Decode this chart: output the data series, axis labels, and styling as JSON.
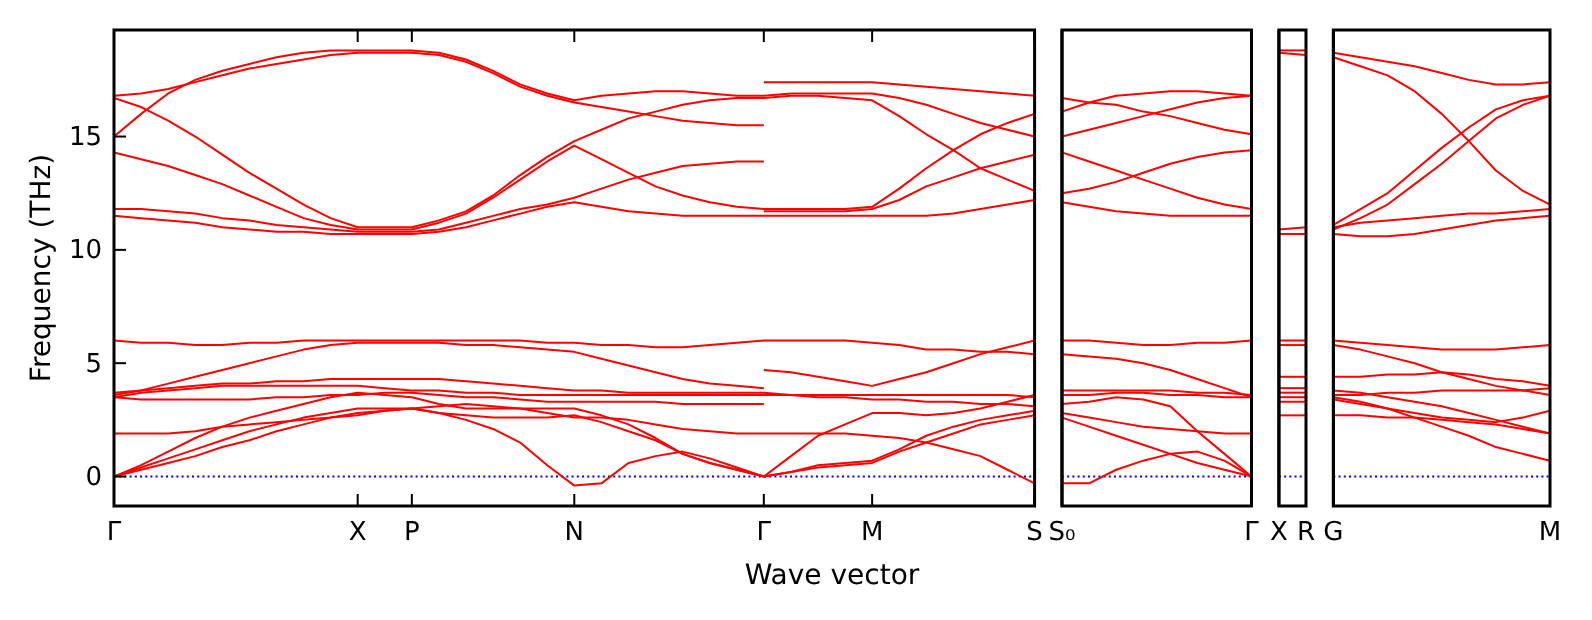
{
  "chart_data": [
    {
      "type": "line",
      "ylabel": "Frequency (THz)",
      "xlabel": "Wave vector",
      "ylim": [
        -1.3,
        19.7
      ],
      "yticks": [
        0,
        5,
        10,
        15
      ],
      "categories": [
        "Γ",
        null,
        null,
        null,
        null,
        null,
        null,
        null,
        null,
        "X",
        null,
        "P",
        null,
        null,
        null,
        null,
        null,
        "N",
        null,
        null,
        null,
        null,
        null,
        null,
        "Γ",
        null,
        null,
        null,
        "M",
        null,
        null,
        null,
        null,
        null,
        "S"
      ],
      "line_style": "solid",
      "ref_lines": [
        {
          "axis": "y",
          "value": 0,
          "color": "#0000ff",
          "line_style": "dotted"
        }
      ],
      "series": [
        {
          "color": "#ff0000",
          "values": [
            15.0,
            16.0,
            16.9,
            17.5,
            17.9,
            18.2,
            18.5,
            18.7,
            18.8,
            18.8,
            18.8,
            18.8,
            18.7,
            18.4,
            17.9,
            17.3,
            16.9,
            16.6,
            16.8,
            16.9,
            17.0,
            17.0,
            16.9,
            16.8,
            16.8,
            16.9,
            16.9,
            16.9,
            16.9,
            16.7,
            16.4,
            16.0,
            15.6,
            15.3,
            15.0
          ]
        },
        {
          "color": "#ff0000",
          "values": [
            16.8,
            16.9,
            17.1,
            17.4,
            17.7,
            18.0,
            18.2,
            18.4,
            18.6,
            18.7,
            18.7,
            18.7,
            18.6,
            18.3,
            17.8,
            17.2,
            16.8,
            16.5,
            16.3,
            16.1,
            15.9,
            15.7,
            15.6,
            15.5,
            15.5,
            null,
            null,
            null,
            null,
            null,
            null,
            null,
            null,
            null,
            null
          ]
        },
        {
          "color": "#ff0000",
          "values": [
            null,
            null,
            null,
            null,
            null,
            null,
            null,
            null,
            null,
            null,
            null,
            null,
            null,
            null,
            null,
            null,
            null,
            null,
            null,
            null,
            null,
            null,
            null,
            null,
            17.4,
            17.4,
            17.4,
            17.4,
            17.4,
            17.3,
            17.2,
            17.1,
            17.0,
            16.9,
            16.8
          ]
        },
        {
          "color": "#ff0000",
          "values": [
            16.7,
            16.3,
            15.7,
            15.0,
            14.2,
            13.4,
            12.7,
            12.0,
            11.4,
            11.0,
            11.0,
            11.0,
            11.3,
            11.7,
            12.4,
            13.3,
            14.1,
            14.8,
            15.3,
            15.8,
            16.1,
            16.4,
            16.6,
            16.7,
            16.7,
            16.8,
            16.8,
            16.7,
            16.6,
            15.9,
            15.1,
            14.4,
            13.6,
            13.1,
            12.6
          ]
        },
        {
          "color": "#ff0000",
          "values": [
            14.3,
            14.0,
            13.7,
            13.3,
            12.9,
            12.4,
            11.9,
            11.4,
            11.1,
            10.9,
            10.9,
            10.9,
            11.2,
            11.6,
            12.3,
            13.1,
            13.9,
            14.6,
            14.0,
            13.4,
            12.8,
            12.4,
            12.1,
            11.9,
            11.8,
            11.8,
            11.8,
            11.8,
            11.9,
            12.7,
            13.6,
            14.4,
            15.1,
            15.6,
            16.0
          ]
        },
        {
          "color": "#ff0000",
          "values": [
            11.8,
            11.8,
            11.7,
            11.6,
            11.4,
            11.3,
            11.1,
            11.0,
            10.9,
            10.8,
            10.8,
            10.8,
            10.9,
            11.2,
            11.5,
            11.8,
            12.0,
            12.3,
            12.7,
            13.1,
            13.4,
            13.7,
            13.8,
            13.9,
            13.9,
            null,
            null,
            null,
            null,
            null,
            null,
            null,
            null,
            null,
            null
          ]
        },
        {
          "color": "#ff0000",
          "values": [
            null,
            null,
            null,
            null,
            null,
            null,
            null,
            null,
            null,
            null,
            null,
            null,
            null,
            null,
            null,
            null,
            null,
            null,
            null,
            null,
            null,
            null,
            null,
            null,
            11.7,
            11.7,
            11.7,
            11.7,
            11.8,
            12.2,
            12.8,
            13.2,
            13.6,
            13.9,
            14.2
          ]
        },
        {
          "color": "#ff0000",
          "values": [
            11.5,
            11.4,
            11.3,
            11.2,
            11.0,
            10.9,
            10.8,
            10.8,
            10.7,
            10.7,
            10.7,
            10.7,
            10.8,
            11.0,
            11.3,
            11.6,
            11.9,
            12.1,
            11.9,
            11.7,
            11.6,
            11.5,
            11.5,
            11.5,
            11.5,
            11.5,
            11.5,
            11.5,
            11.5,
            11.5,
            11.5,
            11.6,
            11.8,
            12.0,
            12.2
          ]
        },
        {
          "color": "#ff0000",
          "values": [
            6.0,
            5.9,
            5.9,
            5.8,
            5.8,
            5.9,
            5.9,
            6.0,
            6.0,
            6.0,
            6.0,
            6.0,
            6.0,
            6.0,
            6.0,
            6.0,
            5.9,
            5.9,
            5.8,
            5.8,
            5.7,
            5.7,
            5.8,
            5.9,
            6.0,
            6.0,
            6.0,
            6.0,
            5.9,
            5.8,
            5.6,
            5.6,
            5.5,
            5.5,
            5.4
          ]
        },
        {
          "color": "#ff0000",
          "values": [
            3.6,
            3.8,
            4.1,
            4.4,
            4.7,
            5.0,
            5.3,
            5.6,
            5.8,
            5.9,
            5.9,
            5.9,
            5.9,
            5.8,
            5.8,
            5.7,
            5.6,
            5.5,
            5.2,
            4.9,
            4.6,
            4.3,
            4.1,
            4.0,
            3.9,
            null,
            null,
            null,
            null,
            null,
            null,
            null,
            null,
            null,
            null
          ]
        },
        {
          "color": "#ff0000",
          "values": [
            3.7,
            3.8,
            3.9,
            4.0,
            4.1,
            4.1,
            4.2,
            4.2,
            4.3,
            4.3,
            4.3,
            4.3,
            4.3,
            4.2,
            4.1,
            4.0,
            3.9,
            3.8,
            3.8,
            3.7,
            3.7,
            3.7,
            3.7,
            3.7,
            3.7,
            3.6,
            3.5,
            3.5,
            3.4,
            3.4,
            3.3,
            3.3,
            3.2,
            3.2,
            3.1
          ]
        },
        {
          "color": "#ff0000",
          "values": [
            3.5,
            3.7,
            3.8,
            3.9,
            4.0,
            4.0,
            4.0,
            4.0,
            4.0,
            4.0,
            3.9,
            3.8,
            3.8,
            3.7,
            3.7,
            3.6,
            3.6,
            3.6,
            3.6,
            3.6,
            3.6,
            3.6,
            3.6,
            3.6,
            3.6,
            3.6,
            3.6,
            3.6,
            3.6,
            3.6,
            3.6,
            3.6,
            3.6,
            3.6,
            3.5
          ]
        },
        {
          "color": "#ff0000",
          "values": [
            3.5,
            3.4,
            3.4,
            3.4,
            3.4,
            3.4,
            3.5,
            3.5,
            3.6,
            3.6,
            3.7,
            3.7,
            3.6,
            3.5,
            3.5,
            3.4,
            3.3,
            3.3,
            3.3,
            3.3,
            3.3,
            3.2,
            3.2,
            3.2,
            3.2,
            null,
            null,
            null,
            null,
            null,
            null,
            null,
            null,
            null,
            null
          ]
        },
        {
          "color": "#ff0000",
          "values": [
            null,
            null,
            null,
            null,
            null,
            null,
            null,
            null,
            null,
            null,
            null,
            null,
            null,
            null,
            null,
            null,
            null,
            null,
            null,
            null,
            null,
            null,
            null,
            null,
            4.7,
            4.6,
            4.4,
            4.2,
            4.0,
            4.3,
            4.6,
            5.0,
            5.4,
            5.7,
            6.0
          ]
        },
        {
          "color": "#ff0000",
          "values": [
            1.9,
            1.9,
            1.9,
            2.0,
            2.2,
            2.3,
            2.4,
            2.5,
            2.6,
            2.7,
            2.9,
            3.0,
            3.1,
            3.2,
            3.1,
            3.0,
            2.8,
            2.6,
            2.6,
            2.5,
            2.3,
            2.1,
            2.0,
            1.9,
            1.9,
            1.9,
            1.9,
            1.9,
            1.8,
            1.7,
            1.5,
            1.2,
            0.9,
            0.3,
            -0.3
          ]
        },
        {
          "color": "#ff0000",
          "values": [
            0,
            0.5,
            1.1,
            1.7,
            2.2,
            2.6,
            2.9,
            3.2,
            3.5,
            3.7,
            3.6,
            3.5,
            3.2,
            3.0,
            3.0,
            3.0,
            3.0,
            3.0,
            2.7,
            2.3,
            1.7,
            1.0,
            0.6,
            0.3,
            0,
            0.9,
            1.8,
            2.3,
            2.8,
            2.8,
            2.7,
            2.8,
            3.0,
            3.3,
            3.6
          ]
        },
        {
          "color": "#ff0000",
          "values": [
            0,
            0.4,
            0.8,
            1.2,
            1.6,
            2.0,
            2.3,
            2.6,
            2.8,
            3.0,
            3.0,
            3.0,
            2.8,
            2.5,
            2.1,
            1.5,
            0.5,
            -0.4,
            -0.3,
            0.6,
            0.9,
            1.1,
            0.8,
            0.4,
            0,
            0.2,
            0.5,
            0.6,
            0.7,
            1.2,
            1.8,
            2.2,
            2.5,
            2.7,
            2.9
          ]
        },
        {
          "color": "#ff0000",
          "values": [
            0,
            0.3,
            0.6,
            0.9,
            1.3,
            1.6,
            2.0,
            2.3,
            2.6,
            2.8,
            2.9,
            3.0,
            2.8,
            2.7,
            2.6,
            2.6,
            2.6,
            2.7,
            2.4,
            2.0,
            1.6,
            1.0,
            0.6,
            0.3,
            0,
            0.2,
            0.4,
            0.5,
            0.6,
            1.1,
            1.5,
            1.9,
            2.3,
            2.5,
            2.7
          ]
        }
      ]
    },
    {
      "type": "line",
      "ylim": [
        -1.3,
        19.7
      ],
      "tick_labels": "x",
      "categories": [
        "S₀",
        null,
        null,
        null,
        null,
        null,
        null,
        "Γ"
      ],
      "line_style": "solid",
      "ref_lines": [
        {
          "axis": "y",
          "value": 0,
          "color": "#0000ff",
          "line_style": "dotted"
        }
      ],
      "series": [
        {
          "color": "#ff0000",
          "values": [
            16.7,
            16.5,
            16.4,
            16.1,
            15.9,
            15.6,
            15.3,
            15.1
          ]
        },
        {
          "color": "#ff0000",
          "values": [
            16.1,
            16.5,
            16.8,
            16.9,
            17.0,
            17.0,
            16.9,
            16.8
          ]
        },
        {
          "color": "#ff0000",
          "values": [
            15.0,
            15.3,
            15.6,
            15.9,
            16.2,
            16.5,
            16.7,
            16.8
          ]
        },
        {
          "color": "#ff0000",
          "values": [
            14.3,
            13.9,
            13.5,
            13.1,
            12.7,
            12.3,
            12.0,
            11.8
          ]
        },
        {
          "color": "#ff0000",
          "values": [
            12.5,
            12.7,
            13.0,
            13.4,
            13.8,
            14.1,
            14.3,
            14.4
          ]
        },
        {
          "color": "#ff0000",
          "values": [
            12.1,
            11.9,
            11.7,
            11.6,
            11.5,
            11.5,
            11.5,
            11.5
          ]
        },
        {
          "color": "#ff0000",
          "values": [
            6.0,
            6.0,
            5.9,
            5.8,
            5.8,
            5.9,
            5.9,
            6.0
          ]
        },
        {
          "color": "#ff0000",
          "values": [
            5.4,
            5.3,
            5.2,
            5.0,
            4.7,
            4.3,
            3.9,
            3.5
          ]
        },
        {
          "color": "#ff0000",
          "values": [
            3.8,
            3.8,
            3.8,
            3.8,
            3.8,
            3.7,
            3.7,
            3.6
          ]
        },
        {
          "color": "#ff0000",
          "values": [
            3.6,
            3.6,
            3.7,
            3.7,
            3.6,
            3.6,
            3.5,
            3.5
          ]
        },
        {
          "color": "#ff0000",
          "values": [
            3.2,
            3.3,
            3.5,
            3.4,
            3.1,
            2.0,
            1.0,
            0
          ]
        },
        {
          "color": "#ff0000",
          "values": [
            2.8,
            2.6,
            2.4,
            2.2,
            2.1,
            2.0,
            1.9,
            1.9
          ]
        },
        {
          "color": "#ff0000",
          "values": [
            2.6,
            2.2,
            1.8,
            1.4,
            1.0,
            0.6,
            0.3,
            0
          ]
        },
        {
          "color": "#ff0000",
          "values": [
            -0.3,
            -0.3,
            0.3,
            0.7,
            1.0,
            1.1,
            0.7,
            0
          ]
        }
      ]
    },
    {
      "type": "line",
      "ylim": [
        -1.3,
        19.7
      ],
      "tick_labels": "x",
      "categories": [
        "X",
        "R"
      ],
      "line_style": "solid",
      "ref_lines": [
        {
          "axis": "y",
          "value": 0,
          "color": "#0000ff",
          "line_style": "dotted"
        }
      ],
      "series": [
        {
          "color": "#ff0000",
          "values": [
            18.8,
            18.8
          ]
        },
        {
          "color": "#ff0000",
          "values": [
            18.7,
            18.6
          ]
        },
        {
          "color": "#ff0000",
          "values": [
            10.9,
            11.0
          ]
        },
        {
          "color": "#ff0000",
          "values": [
            10.7,
            10.7
          ]
        },
        {
          "color": "#ff0000",
          "values": [
            6.0,
            6.0
          ]
        },
        {
          "color": "#ff0000",
          "values": [
            5.8,
            5.8
          ]
        },
        {
          "color": "#ff0000",
          "values": [
            4.4,
            4.4
          ]
        },
        {
          "color": "#ff0000",
          "values": [
            3.9,
            3.9
          ]
        },
        {
          "color": "#ff0000",
          "values": [
            3.7,
            3.7
          ]
        },
        {
          "color": "#ff0000",
          "values": [
            3.5,
            3.5
          ]
        },
        {
          "color": "#ff0000",
          "values": [
            3.3,
            3.3
          ]
        },
        {
          "color": "#ff0000",
          "values": [
            2.7,
            2.7
          ]
        }
      ]
    },
    {
      "type": "line",
      "ylim": [
        -1.3,
        19.7
      ],
      "tick_labels": "x",
      "categories": [
        "G",
        null,
        null,
        null,
        null,
        null,
        null,
        null,
        "M"
      ],
      "line_style": "solid",
      "ref_lines": [
        {
          "axis": "y",
          "value": 0,
          "color": "#0000ff",
          "line_style": "dotted"
        }
      ],
      "series": [
        {
          "color": "#ff0000",
          "values": [
            18.7,
            18.5,
            18.3,
            18.1,
            17.8,
            17.5,
            17.3,
            17.3,
            17.4
          ]
        },
        {
          "color": "#ff0000",
          "values": [
            18.5,
            18.1,
            17.7,
            17.0,
            16.0,
            14.8,
            13.5,
            12.6,
            12.0
          ]
        },
        {
          "color": "#ff0000",
          "values": [
            11.1,
            11.8,
            12.5,
            13.5,
            14.5,
            15.4,
            16.2,
            16.6,
            16.8
          ]
        },
        {
          "color": "#ff0000",
          "values": [
            10.9,
            11.4,
            12.0,
            12.9,
            13.8,
            14.8,
            15.8,
            16.4,
            16.8
          ]
        },
        {
          "color": "#ff0000",
          "values": [
            11.0,
            11.2,
            11.3,
            11.4,
            11.5,
            11.6,
            11.6,
            11.7,
            11.8
          ]
        },
        {
          "color": "#ff0000",
          "values": [
            10.7,
            10.6,
            10.6,
            10.7,
            10.9,
            11.1,
            11.3,
            11.4,
            11.5
          ]
        },
        {
          "color": "#ff0000",
          "values": [
            6.0,
            5.9,
            5.8,
            5.7,
            5.6,
            5.6,
            5.6,
            5.7,
            5.8
          ]
        },
        {
          "color": "#ff0000",
          "values": [
            5.8,
            5.6,
            5.3,
            5.0,
            4.6,
            4.3,
            4.0,
            3.8,
            3.6
          ]
        },
        {
          "color": "#ff0000",
          "values": [
            4.4,
            4.4,
            4.5,
            4.5,
            4.6,
            4.5,
            4.3,
            4.2,
            4.0
          ]
        },
        {
          "color": "#ff0000",
          "values": [
            3.8,
            3.7,
            3.5,
            3.3,
            3.1,
            2.8,
            2.5,
            2.2,
            1.9
          ]
        },
        {
          "color": "#ff0000",
          "values": [
            3.5,
            3.3,
            3.0,
            2.6,
            2.2,
            1.8,
            1.3,
            1.0,
            0.7
          ]
        },
        {
          "color": "#ff0000",
          "values": [
            3.4,
            3.2,
            3.0,
            2.8,
            2.6,
            2.5,
            2.4,
            2.6,
            2.9
          ]
        },
        {
          "color": "#ff0000",
          "values": [
            2.7,
            2.7,
            2.6,
            2.6,
            2.5,
            2.4,
            2.3,
            2.1,
            1.9
          ]
        },
        {
          "color": "#ff0000",
          "values": [
            3.6,
            3.6,
            3.7,
            3.7,
            3.8,
            3.8,
            3.8,
            3.8,
            3.9
          ]
        }
      ]
    }
  ]
}
